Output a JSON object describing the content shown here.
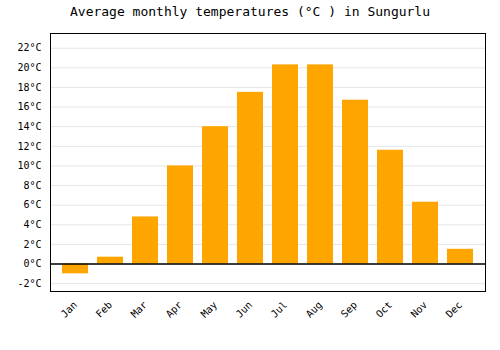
{
  "chart_data": {
    "type": "bar",
    "title": "Average monthly temperatures (°C ) in Sungurlu",
    "categories": [
      "Jan",
      "Feb",
      "Mar",
      "Apr",
      "May",
      "Jun",
      "Jul",
      "Aug",
      "Sep",
      "Oct",
      "Nov",
      "Dec"
    ],
    "values": [
      -1.0,
      0.7,
      4.8,
      10.0,
      14.0,
      17.5,
      20.3,
      20.3,
      16.7,
      11.6,
      6.3,
      1.5
    ],
    "color": "#FFA500",
    "ylim": [
      -2.8,
      23.5
    ],
    "yticks": [
      {
        "value": -2,
        "label": "-2°C"
      },
      {
        "value": 0,
        "label": "0°C"
      },
      {
        "value": 2,
        "label": "2°C"
      },
      {
        "value": 4,
        "label": "4°C"
      },
      {
        "value": 6,
        "label": "6°C"
      },
      {
        "value": 8,
        "label": "8°C"
      },
      {
        "value": 10,
        "label": "10°C"
      },
      {
        "value": 12,
        "label": "12°C"
      },
      {
        "value": 14,
        "label": "14°C"
      },
      {
        "value": 16,
        "label": "16°C"
      },
      {
        "value": 18,
        "label": "18°C"
      },
      {
        "value": 20,
        "label": "20°C"
      },
      {
        "value": 22,
        "label": "22°C"
      }
    ],
    "grid": true
  }
}
